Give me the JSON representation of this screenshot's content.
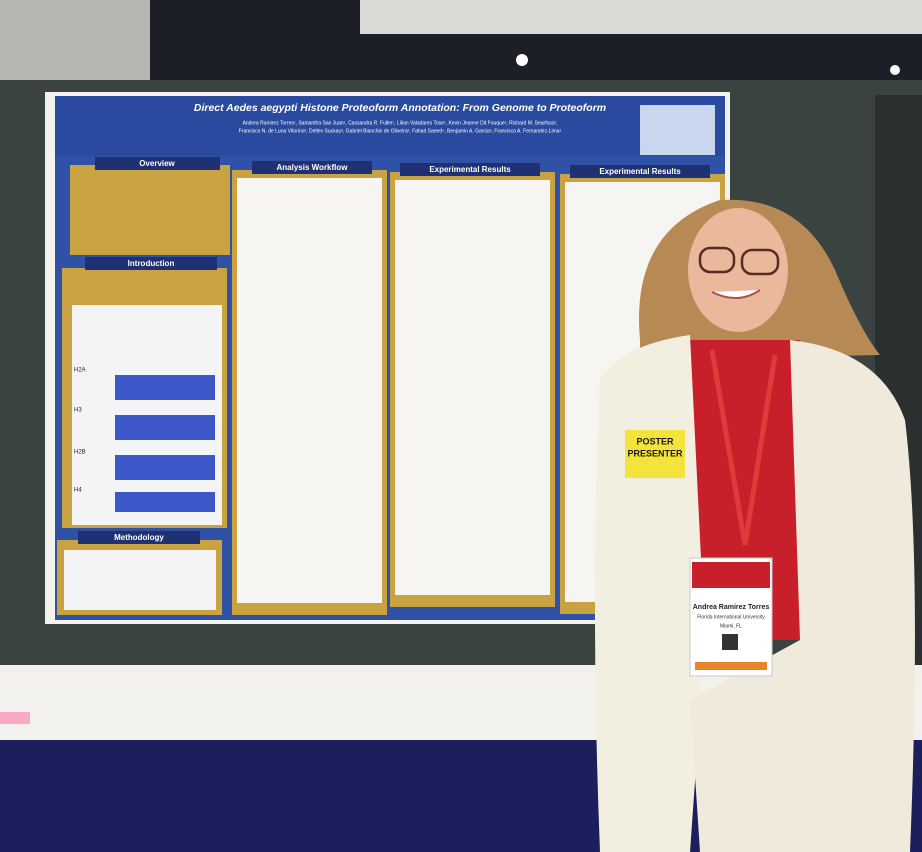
{
  "poster": {
    "title": "Direct Aedes aegypti Histone Proteoform Annotation: From Genome to Proteoform",
    "authors": [
      "Andrea Ramirez Torres¹, Samantha San Juan¹, Cassandra R. Fuller¹, Lilian Valadares Tose¹, Kevin Jeanne Dit Fouque¹, Richard M. Searfoss²,",
      "Francisco N. de Luna Vitorino², Detlev Suckau³, Gabriel Bianchin de Oliveira², Fahad Saeed⁴, Benjamin A. Garcia², Francisco A. Fernandez-Lima¹"
    ],
    "sections": [
      "Overview",
      "Analysis Workflow",
      "Experimental Results",
      "Experimental Results",
      "Introduction",
      "Methodology"
    ],
    "tracks": [
      "H2A",
      "H3",
      "H2B",
      "H4"
    ]
  },
  "sign": {
    "line1": "POSTER",
    "line2": "PRESENTER"
  },
  "badge": {
    "name": "Andrea Ramirez Torres",
    "affiliation": "Florida International University",
    "location": "Miami, FL"
  }
}
